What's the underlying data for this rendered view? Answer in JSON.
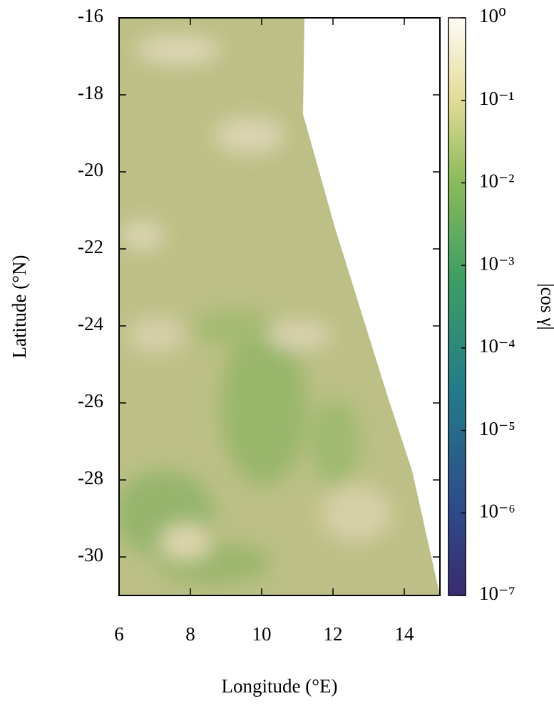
{
  "chart_data": {
    "type": "map",
    "xlabel": "Longitude (°E)",
    "ylabel": "Latitude (°N)",
    "xlim": [
      6,
      15
    ],
    "xticks": [
      6,
      8,
      10,
      12,
      14
    ],
    "ylim": [
      -31,
      -16
    ],
    "yticks": [
      -16,
      -18,
      -20,
      -22,
      -24,
      -26,
      -28,
      -30
    ],
    "colorbar": {
      "label": "|cos γ|",
      "log": true,
      "lim": [
        1e-07,
        1
      ],
      "ticks": [
        {
          "value": 1,
          "label": "10⁰"
        },
        {
          "value": 0.1,
          "label": "10⁻¹"
        },
        {
          "value": 0.01,
          "label": "10⁻²"
        },
        {
          "value": 0.001,
          "label": "10⁻³"
        },
        {
          "value": 0.0001,
          "label": "10⁻⁴"
        },
        {
          "value": 1e-05,
          "label": "10⁻⁵"
        },
        {
          "value": 1e-06,
          "label": "10⁻⁶"
        },
        {
          "value": 1e-07,
          "label": "10⁻⁷"
        }
      ]
    }
  }
}
